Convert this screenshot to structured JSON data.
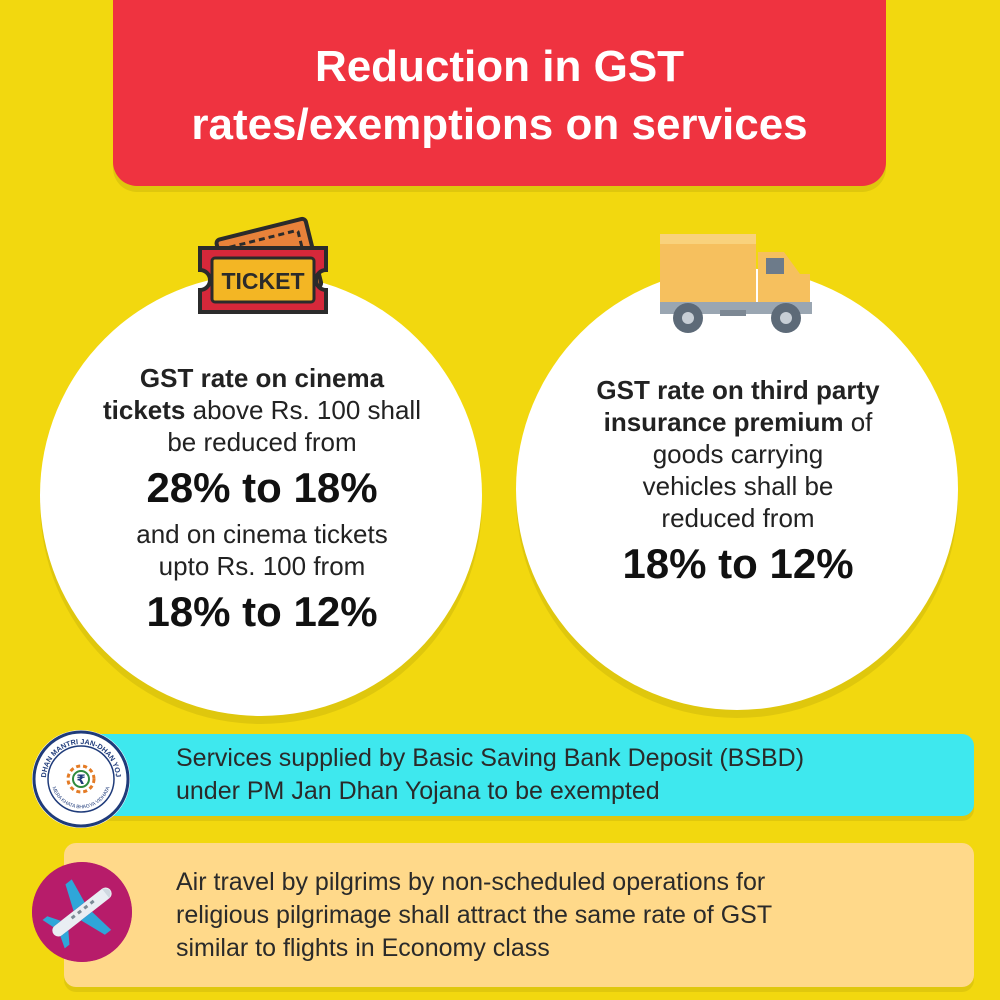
{
  "header": {
    "line1": "Reduction in GST",
    "line2": "rates/exemptions on services"
  },
  "left_card": {
    "icon": "ticket-icon",
    "ticket_label": "TICKET",
    "bold_lead_1": "GST rate on cinema",
    "bold_lead_2": "tickets",
    "text_1": " above Rs. 100 shall",
    "text_2": "be reduced from",
    "rate_1": "28% to 18%",
    "text_3": "and on cinema tickets",
    "text_4": "upto Rs. 100 from",
    "rate_2": "18% to 12%"
  },
  "right_card": {
    "icon": "truck-icon",
    "bold_lead_1": "GST rate on third party",
    "bold_lead_2": "insurance premium",
    "text_1": " of",
    "text_2": "goods carrying",
    "text_3": "vehicles shall be",
    "text_4": "reduced from",
    "rate": "18% to 12%"
  },
  "bsbd": {
    "icon": "jan-dhan-yojana-logo",
    "logo_text_top": "PRADHAN MANTRI JAN-DHAN YOJANA",
    "logo_text_bottom": "MERA KHATA BHAGYA VIDHATA",
    "line1": "Services supplied by Basic Saving Bank Deposit (BSBD)",
    "line2": "under PM Jan Dhan Yojana to be exempted"
  },
  "air": {
    "icon": "airplane-icon",
    "line1": "Air travel by pilgrims by non-scheduled operations for",
    "line2": "religious pilgrimage shall attract the same rate of GST",
    "line3": "similar to flights in Economy class"
  },
  "colors": {
    "background": "#f2d80f",
    "header": "#ef3340",
    "bsbd_bar": "#3ee8ee",
    "air_bar": "#ffd98a",
    "plane_badge": "#b71c6a"
  }
}
